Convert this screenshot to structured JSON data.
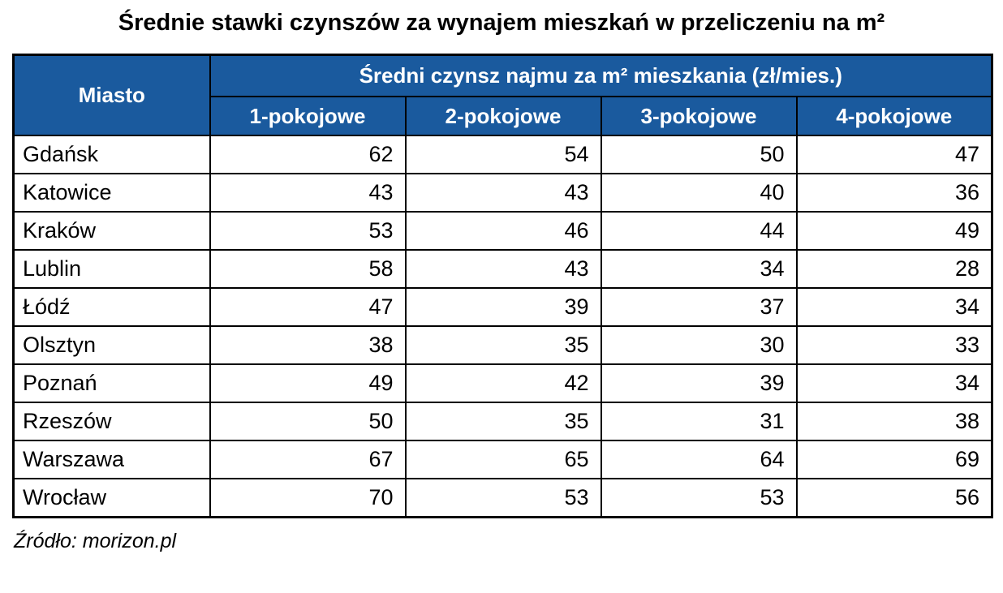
{
  "colors": {
    "header_bg": "#1a5a9e",
    "header_text": "#ffffff",
    "border": "#000000",
    "body_bg": "#ffffff",
    "body_text": "#000000"
  },
  "chart_data": {
    "type": "table",
    "title": "Średnie stawki czynszów za wynajem mieszkań w przeliczeniu na m²",
    "corner_header": "Miasto",
    "group_header": "Średni czynsz najmu za m² mieszkania (zł/mies.)",
    "columns": [
      "1-pokojowe",
      "2-pokojowe",
      "3-pokojowe",
      "4-pokojowe"
    ],
    "rows": [
      {
        "city": "Gdańsk",
        "values": [
          62,
          54,
          50,
          47
        ]
      },
      {
        "city": "Katowice",
        "values": [
          43,
          43,
          40,
          36
        ]
      },
      {
        "city": "Kraków",
        "values": [
          53,
          46,
          44,
          49
        ]
      },
      {
        "city": "Lublin",
        "values": [
          58,
          43,
          34,
          28
        ]
      },
      {
        "city": "Łódź",
        "values": [
          47,
          39,
          37,
          34
        ]
      },
      {
        "city": "Olsztyn",
        "values": [
          38,
          35,
          30,
          33
        ]
      },
      {
        "city": "Poznań",
        "values": [
          49,
          42,
          39,
          34
        ]
      },
      {
        "city": "Rzeszów",
        "values": [
          50,
          35,
          31,
          38
        ]
      },
      {
        "city": "Warszawa",
        "values": [
          67,
          65,
          64,
          69
        ]
      },
      {
        "city": "Wrocław",
        "values": [
          70,
          53,
          53,
          56
        ]
      }
    ],
    "source": "Źródło: morizon.pl"
  }
}
